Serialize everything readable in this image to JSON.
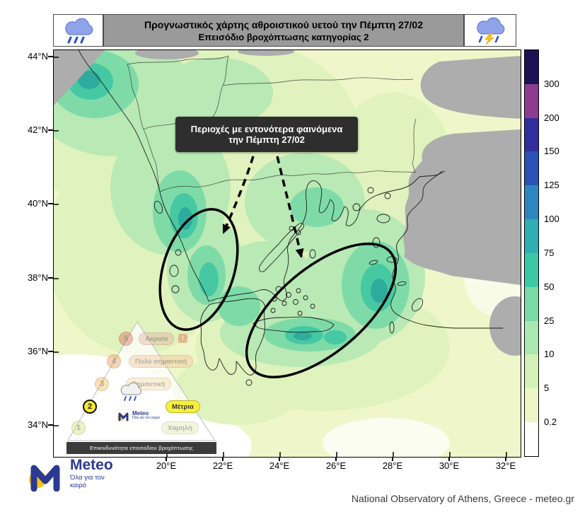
{
  "header": {
    "title_line1": "Προγνωστικός χάρτης αθροιστικού υετού την Πέμπτη 27/02",
    "title_line2": "Επεισόδιο βροχόπτωσης κατηγορίας 2"
  },
  "annotation": {
    "line1": "Περιοχές με εντονότερα φαινόμενα",
    "line2": "την Πέμπτη 27/02"
  },
  "axes": {
    "lat_labels": [
      "44°N",
      "42°N",
      "40°N",
      "38°N",
      "36°N",
      "34°N"
    ],
    "lon_labels": [
      "20°E",
      "22°E",
      "24°E",
      "26°E",
      "28°E",
      "30°E",
      "32°E"
    ]
  },
  "colorbar": {
    "segments": [
      {
        "color": "#1d1256",
        "boundary_label": "300"
      },
      {
        "color": "#8d3c90",
        "boundary_label": "200"
      },
      {
        "color": "#312f9e",
        "boundary_label": "150"
      },
      {
        "color": "#2a52b6",
        "boundary_label": "125"
      },
      {
        "color": "#2e86c0",
        "boundary_label": "100"
      },
      {
        "color": "#2fafb4",
        "boundary_label": "75"
      },
      {
        "color": "#3cc8a4",
        "boundary_label": "50"
      },
      {
        "color": "#79daa8",
        "boundary_label": "25"
      },
      {
        "color": "#abe8b0",
        "boundary_label": "10"
      },
      {
        "color": "#d3f0b6",
        "boundary_label": "5"
      },
      {
        "color": "#eef6c8",
        "boundary_label": "0.2"
      },
      {
        "color": "#ffffff",
        "boundary_label": ""
      }
    ]
  },
  "severity_legend": {
    "caption": "Επικινδυνότητα επεισοδίου βροχόπτωσης",
    "active_level": "2",
    "alert_badge": "!",
    "levels": [
      {
        "value": "5",
        "label": "Ακραία",
        "color": "#e2574c",
        "pill_color": "#eda59e"
      },
      {
        "value": "4",
        "label": "Πολύ σημαντική",
        "color": "#ef8d3b",
        "pill_color": "#f3bd8d"
      },
      {
        "value": "3",
        "label": "Σημαντική",
        "color": "#f2b13d",
        "pill_color": "#f6d695"
      },
      {
        "value": "2",
        "label": "Μέτρια",
        "color": "#f6e72f",
        "pill_color": "#f8ef3d"
      },
      {
        "value": "1",
        "label": "Χαμηλή",
        "color": "#cfdf63",
        "pill_color": "#ddeaa8"
      }
    ],
    "mini_logo_text": "Meteo",
    "mini_logo_subtext": "Όλα για τον καιρό"
  },
  "footer": {
    "logo_text": "Meteo",
    "logo_subtext": "Όλα για τον καιρό",
    "attribution": "National Observatory of Athens, Greece - meteo.gr"
  }
}
